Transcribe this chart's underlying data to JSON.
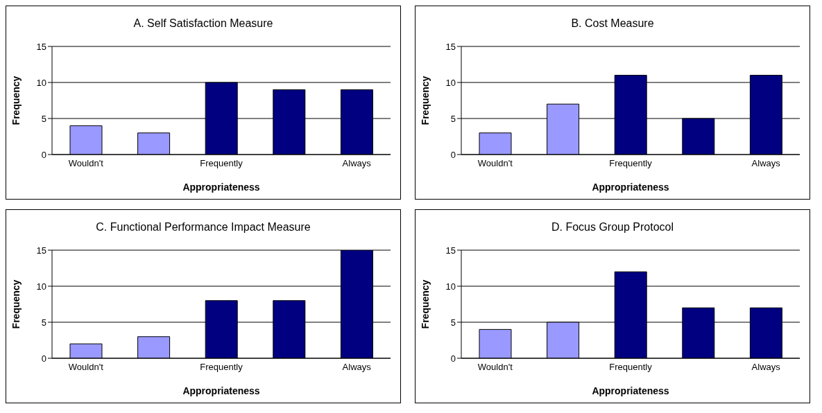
{
  "chart_data": [
    {
      "type": "bar",
      "title": "A.  Self Satisfaction Measure",
      "xlabel": "Appropriateness",
      "ylabel": "Frequency",
      "categories": [
        "Wouldn't",
        null,
        "Frequently",
        null,
        "Always"
      ],
      "values": [
        4,
        3,
        10,
        9,
        9
      ],
      "colors": [
        "#9999ff",
        "#9999ff",
        "#000080",
        "#000080",
        "#000080"
      ],
      "ylim": [
        0,
        15
      ],
      "yticks": [
        0,
        5,
        10,
        15
      ],
      "grid": "y",
      "legend": false
    },
    {
      "type": "bar",
      "title": "B.  Cost Measure",
      "xlabel": "Appropriateness",
      "ylabel": "Frequency",
      "categories": [
        "Wouldn't",
        null,
        "Frequently",
        null,
        "Always"
      ],
      "values": [
        3,
        7,
        11,
        5,
        11
      ],
      "colors": [
        "#9999ff",
        "#9999ff",
        "#000080",
        "#000080",
        "#000080"
      ],
      "ylim": [
        0,
        15
      ],
      "yticks": [
        0,
        5,
        10,
        15
      ],
      "grid": "y",
      "legend": false
    },
    {
      "type": "bar",
      "title": "C.  Functional Performance Impact Measure",
      "xlabel": "Appropriateness",
      "ylabel": "Frequency",
      "categories": [
        "Wouldn't",
        null,
        "Frequently",
        null,
        "Always"
      ],
      "values": [
        2,
        3,
        8,
        8,
        15
      ],
      "colors": [
        "#9999ff",
        "#9999ff",
        "#000080",
        "#000080",
        "#000080"
      ],
      "ylim": [
        0,
        15
      ],
      "yticks": [
        0,
        5,
        10,
        15
      ],
      "grid": "y",
      "legend": false
    },
    {
      "type": "bar",
      "title": "D.  Focus Group Protocol",
      "xlabel": "Appropriateness",
      "ylabel": "Frequency",
      "categories": [
        "Wouldn't",
        null,
        "Frequently",
        null,
        "Always"
      ],
      "values": [
        4,
        5,
        12,
        7,
        7
      ],
      "colors": [
        "#9999ff",
        "#9999ff",
        "#000080",
        "#000080",
        "#000080"
      ],
      "ylim": [
        0,
        15
      ],
      "yticks": [
        0,
        5,
        10,
        15
      ],
      "grid": "y",
      "legend": false
    }
  ]
}
